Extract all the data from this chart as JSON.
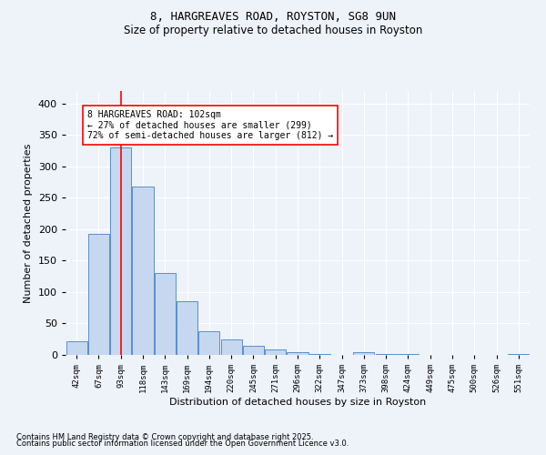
{
  "title1": "8, HARGREAVES ROAD, ROYSTON, SG8 9UN",
  "title2": "Size of property relative to detached houses in Royston",
  "xlabel": "Distribution of detached houses by size in Royston",
  "ylabel": "Number of detached properties",
  "bar_labels": [
    "42sqm",
    "67sqm",
    "93sqm",
    "118sqm",
    "143sqm",
    "169sqm",
    "194sqm",
    "220sqm",
    "245sqm",
    "271sqm",
    "296sqm",
    "322sqm",
    "347sqm",
    "373sqm",
    "398sqm",
    "424sqm",
    "449sqm",
    "475sqm",
    "500sqm",
    "526sqm",
    "551sqm"
  ],
  "bar_values": [
    22,
    192,
    330,
    268,
    130,
    85,
    38,
    25,
    14,
    8,
    5,
    2,
    0,
    4,
    2,
    1,
    0,
    0,
    0,
    0,
    2
  ],
  "bar_color": "#c5d8f0",
  "bar_edge_color": "#5b8fc9",
  "vline_color": "red",
  "annotation_text": "8 HARGREAVES ROAD: 102sqm\n← 27% of detached houses are smaller (299)\n72% of semi-detached houses are larger (812) →",
  "annotation_box_color": "white",
  "annotation_box_edge": "red",
  "ylim": [
    0,
    420
  ],
  "yticks": [
    0,
    50,
    100,
    150,
    200,
    250,
    300,
    350,
    400
  ],
  "footer1": "Contains HM Land Registry data © Crown copyright and database right 2025.",
  "footer2": "Contains public sector information licensed under the Open Government Licence v3.0.",
  "bg_color": "#eef2f9",
  "plot_bg_color": "#eef2f9",
  "grid_color": "white"
}
